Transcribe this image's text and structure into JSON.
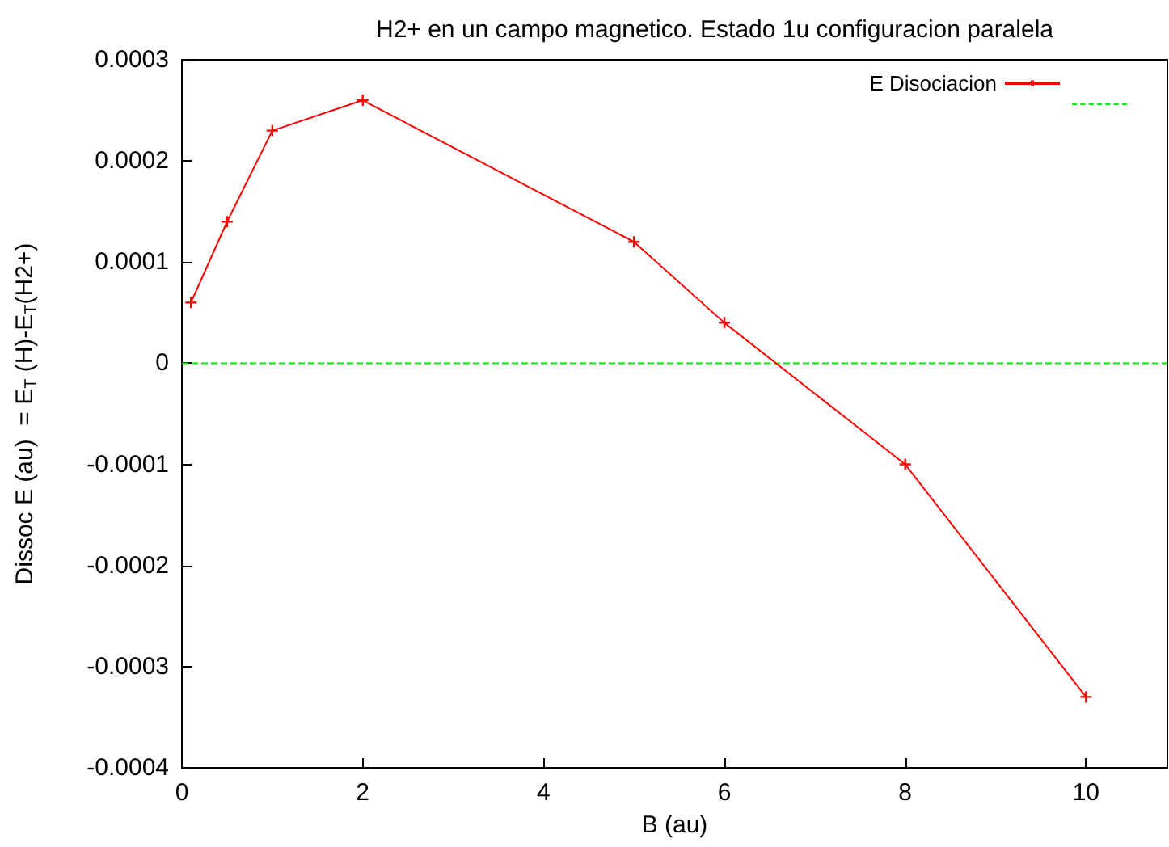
{
  "chart_data": {
    "type": "line",
    "title": "H2+ en un campo magnetico. Estado 1u configuracion paralela",
    "xlabel": "B (au)",
    "ylabel": "Dissoc E (au)  = E$_{T}$ (H)-E$_{T}$(H2+)",
    "x": [
      0.1,
      0.5,
      1,
      2,
      5,
      6,
      8,
      10
    ],
    "series": [
      {
        "name": "E Disociacion",
        "color": "#ff0000",
        "values": [
          6e-05,
          0.00014,
          0.00023,
          0.00026,
          0.00012,
          4e-05,
          -0.0001,
          -0.00033
        ]
      }
    ],
    "xlim": [
      0,
      10.9
    ],
    "xticks": [
      0,
      2,
      4,
      6,
      8,
      10
    ],
    "ylim": [
      -0.0004,
      0.0003
    ],
    "yticks": [
      -0.0004,
      -0.0003,
      -0.0002,
      -0.0001,
      0,
      0.0001,
      0.0002,
      0.0003
    ],
    "ref_lines": [
      {
        "axis": "y",
        "value": 0,
        "color": "#00ee00",
        "line_style": "dashed"
      }
    ],
    "marker": "cross",
    "line_style": "solid",
    "legend": "top right",
    "grid": false
  }
}
